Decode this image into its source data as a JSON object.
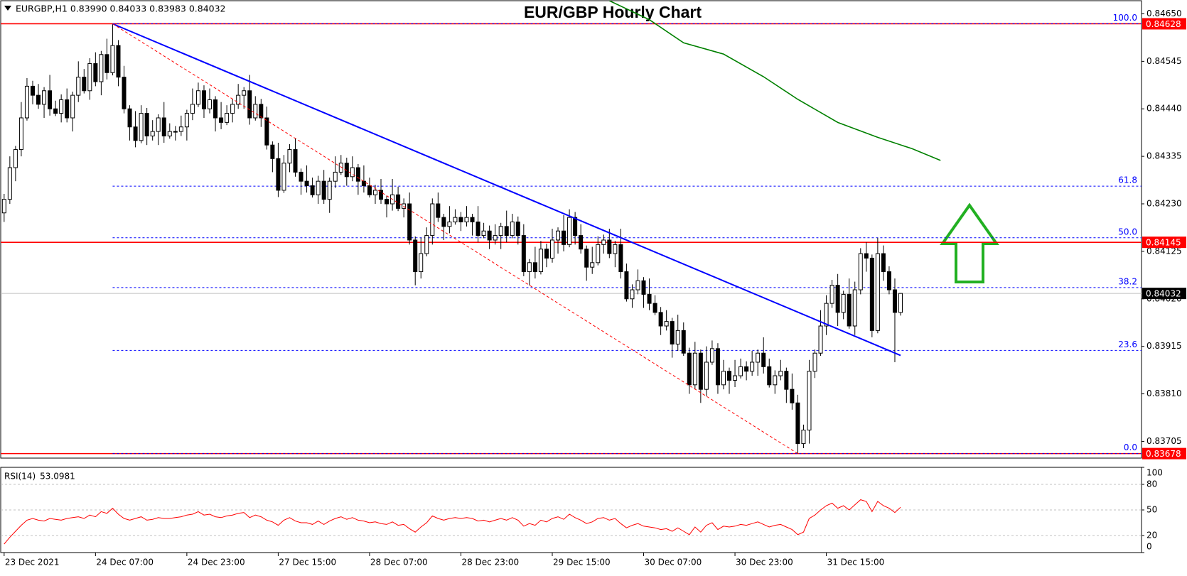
{
  "chart_data": {
    "type": "candlestick",
    "title": "EUR/GBP Hourly Chart",
    "header": "EURGBP,H1  0.83990 0.84033 0.83983 0.84032",
    "xlim": [
      -0.6,
      199.2
    ],
    "ylim": [
      0.83668,
      0.84679
    ],
    "yticks": [
      {
        "value": 0.8465,
        "label": "0.84650"
      },
      0.84545,
      {
        "value": 0.8444,
        "label": "0.84440"
      },
      0.84335,
      {
        "value": 0.8423,
        "label": "0.84230"
      },
      0.84125,
      {
        "value": 0.8402,
        "label": "0.84020"
      },
      0.83915,
      {
        "value": 0.8381,
        "label": "0.83810"
      },
      0.83705
    ],
    "xticks": [
      {
        "value": 0,
        "label": "23 Dec 2021"
      },
      {
        "value": 16,
        "label": "24 Dec 07:00"
      },
      {
        "value": 32,
        "label": "24 Dec 23:00"
      },
      {
        "value": 48,
        "label": "27 Dec 15:00"
      },
      {
        "value": 64,
        "label": "28 Dec 07:00"
      },
      {
        "value": 80,
        "label": "28 Dec 23:00"
      },
      {
        "value": 96,
        "label": "29 Dec 15:00"
      },
      {
        "value": 112,
        "label": "30 Dec 07:00"
      },
      {
        "value": 128,
        "label": "30 Dec 23:00"
      },
      {
        "value": 144,
        "label": "31 Dec 15:00"
      }
    ],
    "candles": {
      "up_color": "#ffffff",
      "down_color": "#000000",
      "open": [
        0.8421,
        0.8424,
        0.8431,
        0.8435,
        0.8442,
        0.8449,
        0.8447,
        0.8445,
        0.8448,
        0.8444,
        0.8443,
        0.8446,
        0.8442,
        0.8447,
        0.8451,
        0.8448,
        0.8454,
        0.845,
        0.8456,
        0.8452,
        0.8458,
        0.8451,
        0.8444,
        0.844,
        0.8437,
        0.8443,
        0.8438,
        0.8439,
        0.8442,
        0.8438,
        0.8439,
        0.8439,
        0.844,
        0.8443,
        0.8445,
        0.8448,
        0.8444,
        0.8446,
        0.8442,
        0.8441,
        0.8443,
        0.8445,
        0.8447,
        0.8448,
        0.8442,
        0.8445,
        0.8442,
        0.8436,
        0.8433,
        0.8426,
        0.8432,
        0.8435,
        0.843,
        0.8428,
        0.8427,
        0.8425,
        0.8428,
        0.8424,
        0.8428,
        0.843,
        0.8432,
        0.8429,
        0.8431,
        0.8428,
        0.8427,
        0.8425,
        0.8426,
        0.8424,
        0.8423,
        0.8425,
        0.8422,
        0.8423,
        0.8415,
        0.8408,
        0.8412,
        0.8416,
        0.8423,
        0.842,
        0.8418,
        0.8419,
        0.842,
        0.8419,
        0.842,
        0.8419,
        0.8416,
        0.8417,
        0.8415,
        0.8416,
        0.8418,
        0.8416,
        0.8419,
        0.8416,
        0.8408,
        0.841,
        0.8408,
        0.8413,
        0.8411,
        0.8415,
        0.8417,
        0.8414,
        0.842,
        0.8416,
        0.8413,
        0.8409,
        0.841,
        0.8414,
        0.8415,
        0.8412,
        0.8414,
        0.8408,
        0.8402,
        0.8404,
        0.8406,
        0.8403,
        0.8401,
        0.8399,
        0.8396,
        0.8397,
        0.8392,
        0.8395,
        0.839,
        0.8383,
        0.839,
        0.8382,
        0.8388,
        0.8391,
        0.8383,
        0.8386,
        0.8384,
        0.8385,
        0.8387,
        0.8386,
        0.8388,
        0.839,
        0.8387,
        0.8383,
        0.8385,
        0.8386,
        0.8382,
        0.8379,
        0.837,
        0.8373,
        0.8386,
        0.839,
        0.8396,
        0.8401,
        0.8405,
        0.8399,
        0.8403,
        0.8396,
        0.8404,
        0.8412,
        0.8411,
        0.8395,
        0.8412,
        0.8408,
        0.8404,
        0.8399
      ],
      "high": [
        0.84252,
        0.84335,
        0.84358,
        0.84455,
        0.84508,
        0.84502,
        0.84495,
        0.84488,
        0.84515,
        0.84458,
        0.84472,
        0.84485,
        0.84478,
        0.84545,
        0.84528,
        0.84552,
        0.84565,
        0.84568,
        0.84595,
        0.84628,
        0.84592,
        0.84535,
        0.84448,
        0.84435,
        0.84448,
        0.84442,
        0.84415,
        0.84428,
        0.84455,
        0.84408,
        0.84402,
        0.84425,
        0.84438,
        0.84485,
        0.84498,
        0.84492,
        0.84485,
        0.84468,
        0.84455,
        0.84448,
        0.84462,
        0.84495,
        0.84488,
        0.84515,
        0.84468,
        0.84462,
        0.84445,
        0.84368,
        0.84365,
        0.84338,
        0.84362,
        0.84375,
        0.84308,
        0.84315,
        0.84288,
        0.84292,
        0.84305,
        0.84288,
        0.84335,
        0.84338,
        0.84332,
        0.84335,
        0.84318,
        0.84315,
        0.84288,
        0.84272,
        0.84285,
        0.84248,
        0.84285,
        0.84268,
        0.84242,
        0.84255,
        0.84158,
        0.84155,
        0.84178,
        0.84242,
        0.84255,
        0.84208,
        0.84225,
        0.84218,
        0.84212,
        0.84225,
        0.84208,
        0.84225,
        0.84188,
        0.84182,
        0.84185,
        0.84188,
        0.84215,
        0.84208,
        0.84202,
        0.84185,
        0.84108,
        0.84135,
        0.84148,
        0.84142,
        0.84175,
        0.84178,
        0.84205,
        0.84218,
        0.84212,
        0.84185,
        0.84138,
        0.84135,
        0.84158,
        0.84162,
        0.84175,
        0.84148,
        0.84175,
        0.84098,
        0.84052,
        0.84085,
        0.84068,
        0.84065,
        0.84028,
        0.84002,
        0.83995,
        0.83978,
        0.83985,
        0.83968,
        0.83912,
        0.83925,
        0.83908,
        0.83915,
        0.83928,
        0.83922,
        0.83885,
        0.83868,
        0.83885,
        0.83888,
        0.83882,
        0.83905,
        0.83908,
        0.83935,
        0.83888,
        0.83862,
        0.83885,
        0.83868,
        0.83855,
        0.83808,
        0.83742,
        0.83885,
        0.83908,
        0.83995,
        0.84028,
        0.84062,
        0.84075,
        0.84038,
        0.84065,
        0.84058,
        0.84132,
        0.84145,
        0.84118,
        0.84155,
        0.84138,
        0.84092,
        0.84065,
        0.84033
      ],
      "low": [
        0.8419,
        0.8423,
        0.8428,
        0.84335,
        0.84414,
        0.8445,
        0.8444,
        0.8442,
        0.84425,
        0.84424,
        0.8441,
        0.8441,
        0.8439,
        0.84455,
        0.84474,
        0.8446,
        0.8449,
        0.8447,
        0.84505,
        0.84514,
        0.8449,
        0.8443,
        0.8437,
        0.84355,
        0.84364,
        0.8436,
        0.8437,
        0.8436,
        0.84365,
        0.84374,
        0.8437,
        0.8438,
        0.8437,
        0.84415,
        0.84444,
        0.8442,
        0.8443,
        0.8439,
        0.84395,
        0.84404,
        0.8441,
        0.8444,
        0.8444,
        0.84405,
        0.84414,
        0.844,
        0.8435,
        0.843,
        0.84245,
        0.84254,
        0.843,
        0.8429,
        0.8425,
        0.84255,
        0.84244,
        0.8423,
        0.8423,
        0.8421,
        0.84265,
        0.84294,
        0.8427,
        0.8428,
        0.8425,
        0.84255,
        0.84244,
        0.8423,
        0.8423,
        0.842,
        0.84215,
        0.84214,
        0.842,
        0.8414,
        0.8405,
        0.84065,
        0.84114,
        0.8414,
        0.8419,
        0.8415,
        0.84165,
        0.84184,
        0.8417,
        0.8418,
        0.8416,
        0.84145,
        0.84154,
        0.8413,
        0.8414,
        0.8413,
        0.84145,
        0.84154,
        0.8414,
        0.8407,
        0.8405,
        0.84065,
        0.84074,
        0.8409,
        0.841,
        0.8412,
        0.84125,
        0.84134,
        0.8414,
        0.8412,
        0.8406,
        0.84075,
        0.84094,
        0.8412,
        0.8411,
        0.8409,
        0.84065,
        0.84014,
        0.84,
        0.8403,
        0.84,
        0.83995,
        0.83984,
        0.8394,
        0.8395,
        0.8389,
        0.83905,
        0.83894,
        0.8381,
        0.8382,
        0.8379,
        0.83805,
        0.83874,
        0.8381,
        0.8382,
        0.8381,
        0.83825,
        0.83844,
        0.8384,
        0.8385,
        0.8385,
        0.83855,
        0.83824,
        0.8381,
        0.8384,
        0.8379,
        0.83775,
        0.83678,
        0.8369,
        0.837,
        0.83845,
        0.83894,
        0.8394,
        0.84,
        0.8396,
        0.83975,
        0.83954,
        0.8394,
        0.8403,
        0.8408,
        0.83935,
        0.83944,
        0.8406,
        0.8403,
        0.8388,
        0.83983
      ],
      "close": [
        0.8424,
        0.8431,
        0.8435,
        0.8442,
        0.8449,
        0.8447,
        0.8445,
        0.8448,
        0.8444,
        0.8443,
        0.8446,
        0.8442,
        0.8447,
        0.8451,
        0.8448,
        0.8454,
        0.845,
        0.8456,
        0.8452,
        0.8458,
        0.8451,
        0.8444,
        0.844,
        0.8437,
        0.8443,
        0.8438,
        0.8439,
        0.8442,
        0.8438,
        0.8439,
        0.8439,
        0.844,
        0.8443,
        0.8445,
        0.8448,
        0.8444,
        0.8446,
        0.8442,
        0.8441,
        0.8443,
        0.8445,
        0.8447,
        0.8448,
        0.8442,
        0.8445,
        0.8442,
        0.8436,
        0.8433,
        0.8426,
        0.8432,
        0.8435,
        0.843,
        0.8428,
        0.8427,
        0.8425,
        0.8428,
        0.8424,
        0.8428,
        0.843,
        0.8432,
        0.8429,
        0.8431,
        0.8428,
        0.8427,
        0.8425,
        0.8426,
        0.8424,
        0.8423,
        0.8425,
        0.8422,
        0.8423,
        0.8415,
        0.8408,
        0.8412,
        0.8416,
        0.8423,
        0.842,
        0.8418,
        0.8419,
        0.842,
        0.8419,
        0.842,
        0.8419,
        0.8416,
        0.8417,
        0.8415,
        0.8416,
        0.8418,
        0.8416,
        0.8419,
        0.8416,
        0.8408,
        0.841,
        0.8408,
        0.8413,
        0.8411,
        0.8415,
        0.8417,
        0.8414,
        0.842,
        0.8416,
        0.8413,
        0.8409,
        0.841,
        0.8414,
        0.8415,
        0.8412,
        0.8414,
        0.8408,
        0.8402,
        0.8404,
        0.8406,
        0.8403,
        0.8401,
        0.8399,
        0.8396,
        0.8397,
        0.8392,
        0.8395,
        0.839,
        0.8383,
        0.839,
        0.8382,
        0.8388,
        0.8391,
        0.8383,
        0.8386,
        0.8384,
        0.8385,
        0.8387,
        0.8386,
        0.8388,
        0.839,
        0.8387,
        0.8383,
        0.8385,
        0.8386,
        0.8382,
        0.8379,
        0.837,
        0.8373,
        0.8386,
        0.839,
        0.8396,
        0.8401,
        0.8405,
        0.8399,
        0.8403,
        0.8396,
        0.8404,
        0.8412,
        0.8411,
        0.8395,
        0.8412,
        0.8408,
        0.8404,
        0.8399,
        0.84032
      ]
    },
    "moving_average": {
      "color": "#008000",
      "x": [
        106,
        113,
        119,
        126,
        133,
        139,
        146,
        153,
        159,
        164
      ],
      "values": [
        0.84679,
        0.84637,
        0.84586,
        0.84561,
        0.84511,
        0.84461,
        0.8441,
        0.84377,
        0.84352,
        0.84326
      ]
    },
    "trendlines": [
      {
        "color": "#0000ff",
        "dashed": false,
        "x": [
          19,
          157
        ],
        "values": [
          0.84628,
          0.83895
        ]
      },
      {
        "color": "#ff0000",
        "dashed": true,
        "x": [
          19,
          139
        ],
        "values": [
          0.84628,
          0.83678
        ]
      }
    ],
    "horizontal_lines": [
      {
        "value": 0.84628,
        "color": "#ff0000",
        "label_color": "#ff0000"
      },
      {
        "value": 0.84145,
        "color": "#ff0000",
        "label_color": "#ff0000"
      },
      {
        "value": 0.83678,
        "color": "#ff0000",
        "label_color": "#ff0000"
      },
      {
        "value": 0.84032,
        "color": "#c0c0c0",
        "label_color": "#000000"
      }
    ],
    "fibonacci": {
      "color": "#0000ff",
      "start": 19,
      "levels": [
        {
          "level": {
            "value": 100,
            "label": "100.0"
          },
          "price": 0.84628
        },
        {
          "level": 61.8,
          "price": 0.84269
        },
        {
          "level": {
            "value": 50,
            "label": "50.0"
          },
          "price": 0.84155
        },
        {
          "level": 38.2,
          "price": 0.84045
        },
        {
          "level": 23.6,
          "price": 0.83906
        },
        {
          "level": {
            "value": 0,
            "label": "0.0"
          },
          "price": 0.83678
        }
      ]
    },
    "rsi": {
      "name": "RSI(14)",
      "color": "#ff0000",
      "ylim": [
        0,
        100
      ],
      "yticks": [
        100,
        80,
        50,
        20,
        0
      ],
      "levels": [
        80,
        50,
        20
      ],
      "values": [
        10,
        18,
        25,
        32,
        38,
        40,
        38,
        37,
        40,
        39,
        38,
        40,
        41,
        42,
        40,
        44,
        42,
        48,
        46,
        52,
        45,
        40,
        38,
        40,
        42,
        38,
        39,
        41,
        40,
        40,
        41,
        42,
        44,
        45,
        48,
        44,
        45,
        42,
        41,
        43,
        44,
        46,
        47,
        41,
        44,
        42,
        38,
        36,
        32,
        38,
        41,
        37,
        35,
        35,
        33,
        37,
        33,
        37,
        40,
        42,
        39,
        41,
        38,
        37,
        35,
        36,
        34,
        33,
        36,
        32,
        33,
        28,
        24,
        30,
        35,
        43,
        40,
        38,
        40,
        41,
        40,
        41,
        40,
        37,
        38,
        36,
        38,
        40,
        38,
        41,
        38,
        31,
        34,
        32,
        38,
        36,
        40,
        42,
        39,
        45,
        41,
        38,
        34,
        36,
        40,
        41,
        38,
        40,
        34,
        29,
        32,
        34,
        31,
        30,
        29,
        27,
        28,
        25,
        29,
        25,
        21,
        30,
        24,
        32,
        35,
        27,
        31,
        30,
        31,
        33,
        32,
        34,
        36,
        33,
        30,
        32,
        33,
        30,
        27,
        21,
        24,
        40,
        44,
        50,
        55,
        58,
        52,
        55,
        50,
        56,
        62,
        60,
        48,
        60,
        55,
        52,
        47,
        53.0981
      ]
    }
  }
}
